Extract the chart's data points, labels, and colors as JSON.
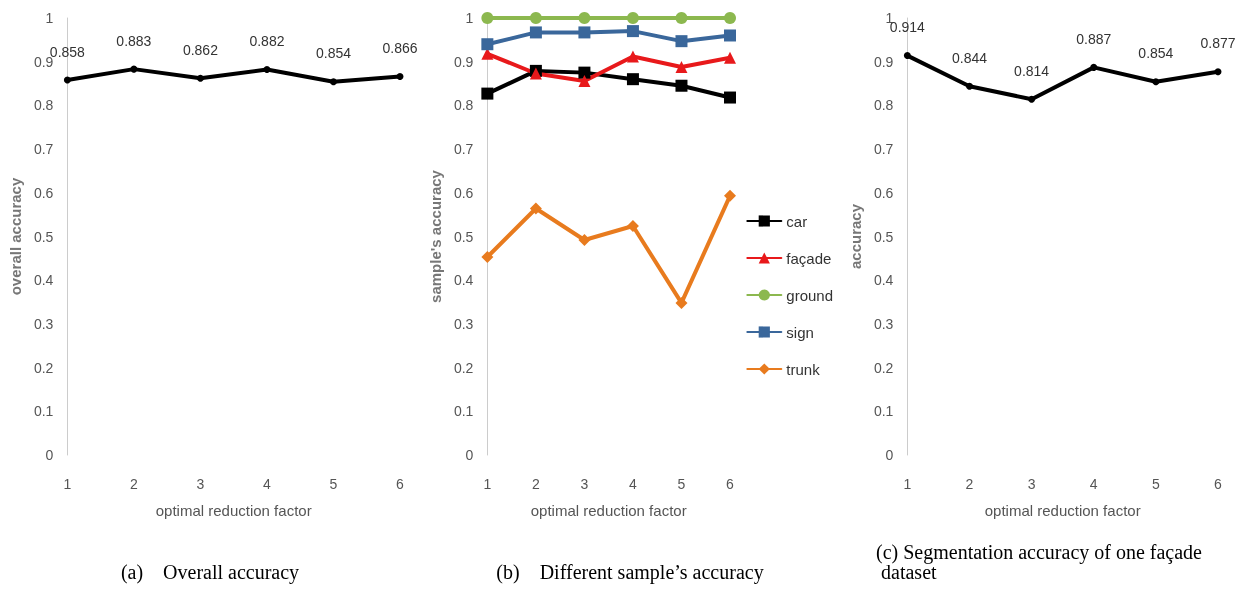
{
  "chart_data": [
    {
      "type": "line",
      "xlabel": "optimal reduction factor",
      "ylabel": "overall accuracy",
      "categories": [
        "1",
        "2",
        "3",
        "4",
        "5",
        "6"
      ],
      "series": [
        {
          "color": "#000000",
          "values": [
            0.858,
            0.883,
            0.862,
            0.882,
            0.854,
            0.866
          ]
        }
      ],
      "ylim": [
        0,
        1
      ],
      "yticks": [
        0,
        0.1,
        0.2,
        0.3,
        0.4,
        0.5,
        0.6,
        0.7,
        0.8,
        0.9,
        1
      ],
      "data_labels": true,
      "marker": "circle",
      "grid": false,
      "legend": false,
      "annotations": [
        "(a)    Overall accuracy"
      ]
    },
    {
      "type": "line",
      "xlabel": "optimal reduction factor",
      "ylabel": "sample's accuracy",
      "categories": [
        "1",
        "2",
        "3",
        "4",
        "5",
        "6"
      ],
      "series": [
        {
          "name": "car",
          "color": "#000000",
          "marker": "square",
          "values": [
            0.827,
            0.879,
            0.875,
            0.86,
            0.845,
            0.818
          ]
        },
        {
          "name": "façade",
          "color": "#e8191b",
          "marker": "triangle",
          "values": [
            0.918,
            0.873,
            0.856,
            0.912,
            0.888,
            0.909
          ]
        },
        {
          "name": "ground",
          "color": "#8cb84f",
          "marker": "circle",
          "values": [
            1,
            1,
            1,
            1,
            1,
            1
          ]
        },
        {
          "name": "sign",
          "color": "#3a679b",
          "marker": "square",
          "values": [
            0.94,
            0.967,
            0.967,
            0.97,
            0.947,
            0.96
          ]
        },
        {
          "name": "trunk",
          "color": "#e87b1e",
          "marker": "diamond",
          "values": [
            0.453,
            0.564,
            0.492,
            0.524,
            0.348,
            0.593
          ]
        }
      ],
      "ylim": [
        0,
        1
      ],
      "yticks": [
        0,
        0.1,
        0.2,
        0.3,
        0.4,
        0.5,
        0.6,
        0.7,
        0.8,
        0.9,
        1
      ],
      "grid": false,
      "legend": "right",
      "annotations": [
        "(b)    Different sample’s accuracy"
      ]
    },
    {
      "type": "line",
      "xlabel": "optimal reduction factor",
      "ylabel": "accuracy",
      "categories": [
        "1",
        "2",
        "3",
        "4",
        "5",
        "6"
      ],
      "series": [
        {
          "color": "#000000",
          "values": [
            0.914,
            0.844,
            0.814,
            0.887,
            0.854,
            0.877
          ]
        }
      ],
      "ylim": [
        0,
        1
      ],
      "yticks": [
        0,
        0.1,
        0.2,
        0.3,
        0.4,
        0.5,
        0.6,
        0.7,
        0.8,
        0.9,
        1
      ],
      "data_labels": true,
      "marker": "circle",
      "grid": false,
      "legend": false,
      "annotations": [
        "(c) Segmentation accuracy of one façade dataset"
      ]
    }
  ]
}
